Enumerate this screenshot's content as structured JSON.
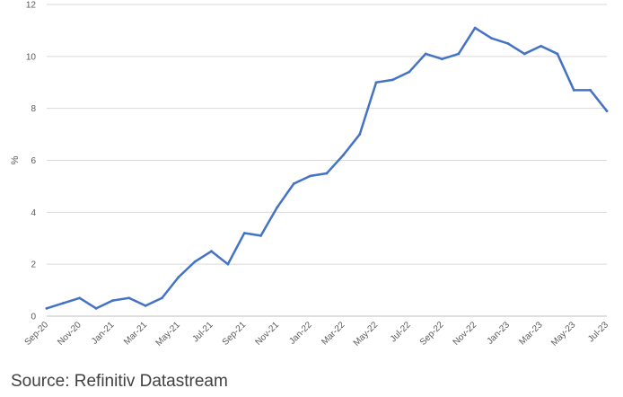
{
  "chart_data": {
    "type": "line",
    "title": "",
    "xlabel": "",
    "ylabel": "%",
    "ylim": [
      0,
      12
    ],
    "yticks": [
      0,
      2,
      4,
      6,
      8,
      10,
      12
    ],
    "grid": true,
    "legend": "none",
    "x": [
      "Sep-20",
      "Oct-20",
      "Nov-20",
      "Dec-20",
      "Jan-21",
      "Feb-21",
      "Mar-21",
      "Apr-21",
      "May-21",
      "Jun-21",
      "Jul-21",
      "Aug-21",
      "Sep-21",
      "Oct-21",
      "Nov-21",
      "Dec-21",
      "Jan-22",
      "Feb-22",
      "Mar-22",
      "Apr-22",
      "May-22",
      "Jun-22",
      "Jul-22",
      "Aug-22",
      "Sep-22",
      "Oct-22",
      "Nov-22",
      "Dec-22",
      "Jan-23",
      "Feb-23",
      "Mar-23",
      "Apr-23",
      "May-23",
      "Jun-23",
      "Jul-23"
    ],
    "xtick_labels": [
      "Sep-20",
      "Nov-20",
      "Jan-21",
      "Mar-21",
      "May-21",
      "Jul-21",
      "Sep-21",
      "Nov-21",
      "Jan-22",
      "Mar-22",
      "May-22",
      "Jul-22",
      "Sep-22",
      "Nov-22",
      "Jan-23",
      "Mar-23",
      "May-23",
      "Jul-23"
    ],
    "series": [
      {
        "color": "#4472C4",
        "values": [
          0.3,
          0.5,
          0.7,
          0.3,
          0.6,
          0.7,
          0.4,
          0.7,
          1.5,
          2.1,
          2.5,
          2.0,
          3.2,
          3.1,
          4.2,
          5.1,
          5.4,
          5.5,
          6.2,
          7.0,
          9.0,
          9.1,
          9.4,
          10.1,
          9.9,
          10.1,
          11.1,
          10.7,
          10.5,
          10.1,
          10.4,
          10.1,
          8.7,
          8.7,
          7.9
        ]
      }
    ]
  },
  "source": "Source: Refinitiv Datastream"
}
